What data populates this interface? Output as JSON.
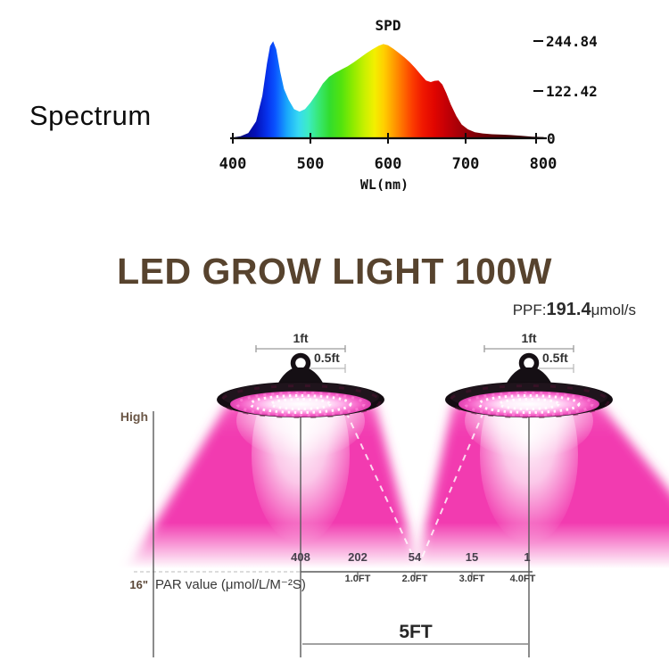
{
  "spectrum_section": {
    "label": "Spectrum"
  },
  "chart_data": {
    "type": "area",
    "title": "SPD",
    "xlabel": "WL(nm)",
    "ylabel": "",
    "x_tick_labels": [
      "400",
      "500",
      "600",
      "700",
      "800"
    ],
    "y_tick_labels": [
      "244.84",
      "122.42",
      "0"
    ],
    "xlim": [
      400,
      800
    ],
    "ylim": [
      0,
      244.84
    ],
    "grid": false,
    "legend": "none",
    "x": [
      400,
      410,
      420,
      430,
      438,
      444,
      448,
      452,
      456,
      461,
      466,
      472,
      479,
      486,
      493,
      500,
      508,
      516,
      524,
      532,
      540,
      548,
      556,
      564,
      572,
      580,
      588,
      594,
      600,
      607,
      614,
      621,
      628,
      635,
      642,
      649,
      655,
      660,
      665,
      670,
      675,
      681,
      688,
      695,
      703,
      712,
      722,
      734,
      746,
      758,
      772,
      786,
      800
    ],
    "y": [
      2,
      5,
      13,
      42,
      105,
      185,
      228,
      240,
      220,
      165,
      122,
      95,
      72,
      66,
      72,
      88,
      110,
      135,
      152,
      162,
      170,
      178,
      188,
      199,
      210,
      220,
      229,
      233,
      230,
      221,
      211,
      200,
      188,
      174,
      158,
      143,
      139,
      142,
      143,
      133,
      112,
      83,
      55,
      34,
      22,
      15,
      12,
      10,
      9,
      8,
      6,
      4,
      3
    ]
  },
  "title_section": {
    "title": "LED GROW LIGHT 100W",
    "ppf_label": "PPF:",
    "ppf_value": "191.4",
    "ppf_unit": "μmol/s"
  },
  "diagram": {
    "high_label": "High",
    "height_label": "16\"",
    "par_caption": "PAR value (μmol/L/M⁻²S)",
    "span_label": "5FT",
    "hang_width_label": "1ft",
    "hang_half_label": "0.5ft",
    "par_values": [
      "408",
      "202",
      "54",
      "15",
      "1"
    ],
    "distance_labels": [
      "1.0FT",
      "2.0FT",
      "3.0FT",
      "4.0FT"
    ]
  },
  "colors": {
    "accent_magenta": "#f23ab0",
    "title_brown": "#57432e",
    "label_brown": "#6b5747",
    "text_dark": "#2b2b2b",
    "axis_gray": "#5a5a5a"
  }
}
